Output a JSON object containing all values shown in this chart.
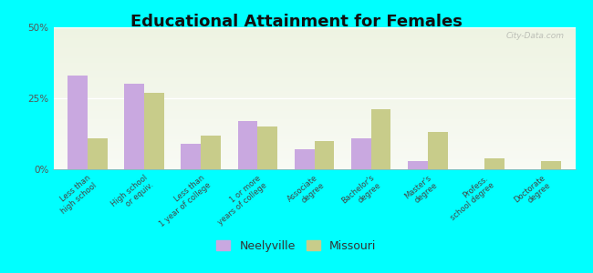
{
  "title": "Educational Attainment for Females",
  "categories": [
    "Less than\nhigh school",
    "High school\nor equiv.",
    "Less than\n1 year of college",
    "1 or more\nyears of college",
    "Associate\ndegree",
    "Bachelor's\ndegree",
    "Master's\ndegree",
    "Profess.\nschool degree",
    "Doctorate\ndegree"
  ],
  "neelyville": [
    33,
    30,
    9,
    17,
    7,
    11,
    3,
    0,
    0
  ],
  "missouri": [
    11,
    27,
    12,
    15,
    10,
    21,
    13,
    4,
    3
  ],
  "neelyville_color": "#c9a8e0",
  "missouri_color": "#c8cc8a",
  "background_color": "#00ffff",
  "plot_bg_top": "#eef3e2",
  "plot_bg_bottom": "#f8faf4",
  "ylabel_ticks": [
    "0%",
    "25%",
    "50%"
  ],
  "yticks": [
    0,
    25,
    50
  ],
  "ylim": [
    0,
    50
  ],
  "bar_width": 0.35,
  "legend_neelyville": "Neelyville",
  "legend_missouri": "Missouri",
  "watermark": "City-Data.com"
}
